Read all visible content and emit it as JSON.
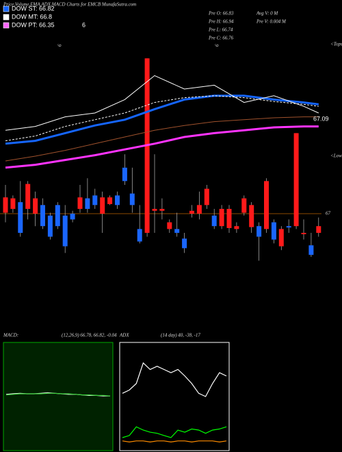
{
  "chart_data": [
    {
      "type": "candlestick",
      "title": "Price,Volume,EMA,ADX,MACD Charts for EMCB MunafaSutra.com",
      "legend": [
        {
          "label": "DOW ST: 66.82",
          "color": "#1565ff"
        },
        {
          "label": "DOW MT: 66.8",
          "color": "#ffffff"
        },
        {
          "label": "DOW PT: 66.35",
          "color": "#ff66ff"
        }
      ],
      "legend_note": "6",
      "stats": [
        "Pre O: 66.83",
        "Pre H: 66.94",
        "Pre L: 66.74",
        "Pre C: 66.76",
        "Avg V: 0 M",
        "Pre V: 0.004 M"
      ],
      "annotations": [
        "<Tops",
        "<Lows",
        "6",
        "6"
      ],
      "ylim": [
        66.88,
        67.18
      ],
      "up_color": "#1a66ff",
      "down_color": "#ff1a1a",
      "open": [
        67.017,
        67.016,
        66.98,
        67.031,
        67.016,
        66.987,
        66.976,
        66.987,
        66.966,
        66.994,
        67.017,
        67.005,
        67.009,
        67.017,
        67.017,
        67.009,
        67.034,
        67.009,
        66.971,
        67.162,
        67.005,
        67.005,
        66.991,
        66.98,
        66.964,
        67.003,
        67.009,
        67.026,
        66.987,
        67.005,
        67.005,
        66.987,
        67.016,
        67.009,
        66.976,
        67.034,
        66.973,
        66.984,
        66.986,
        67.084,
        66.98,
        66.957,
        66.987
      ],
      "high": [
        67.03,
        67.019,
        67.034,
        67.034,
        67.023,
        67.016,
        67.001,
        67.012,
        67.009,
        67.003,
        67.03,
        67.037,
        67.026,
        67.023,
        67.019,
        67.023,
        67.062,
        67.048,
        67.009,
        67.162,
        67.062,
        67.016,
        66.994,
        67.001,
        66.98,
        67.009,
        67.023,
        67.03,
        67.005,
        67.009,
        67.009,
        66.991,
        67.019,
        67.012,
        66.991,
        67.037,
        66.994,
        66.987,
        66.994,
        67.084,
        66.994,
        66.98,
        66.996
      ],
      "low": [
        66.991,
        67.001,
        66.976,
        66.994,
        66.987,
        66.984,
        66.973,
        66.984,
        66.959,
        66.991,
        67.001,
        67.001,
        67.005,
        66.98,
        67.009,
        67.005,
        67.03,
        67.001,
        66.969,
        66.976,
        66.98,
        66.994,
        66.98,
        66.976,
        66.959,
        66.996,
        66.994,
        67.005,
        66.984,
        66.984,
        66.98,
        66.98,
        66.998,
        66.98,
        66.951,
        66.98,
        66.969,
        66.962,
        66.98,
        66.984,
        66.973,
        66.955,
        66.976
      ],
      "close": [
        67.001,
        67.005,
        67.012,
        67.005,
        67.0,
        67.009,
        66.998,
        67.009,
        66.998,
        67.0,
        67.005,
        67.016,
        67.019,
        67.0,
        67.01,
        67.019,
        67.048,
        67.021,
        66.984,
        66.98,
        67.003,
        67.003,
        66.984,
        66.984,
        66.974,
        67.0,
        67.0,
        67.009,
        66.998,
        66.987,
        66.985,
        66.984,
        67.001,
        66.986,
        66.987,
        66.984,
        66.991,
        66.966,
        66.987,
        66.987,
        66.979,
        66.967,
        66.98
      ],
      "line_x": [
        0,
        4,
        8,
        12,
        16,
        20,
        24,
        28,
        32,
        36,
        40,
        42
      ],
      "series": [
        {
          "color": "#a0522d",
          "width": 1,
          "values": [
            67.055,
            67.06,
            67.066,
            67.073,
            67.08,
            67.087,
            67.092,
            67.096,
            67.098,
            67.1,
            67.101,
            67.101
          ]
        },
        {
          "color": "#ff33ff",
          "width": 3,
          "values": [
            67.048,
            67.051,
            67.056,
            67.061,
            67.067,
            67.073,
            67.08,
            67.084,
            67.087,
            67.09,
            67.091,
            67.091
          ]
        },
        {
          "color": "#1565ff",
          "width": 3,
          "values": [
            67.073,
            67.076,
            67.084,
            67.092,
            67.098,
            67.109,
            67.119,
            67.123,
            67.123,
            67.119,
            67.116,
            67.114
          ]
        },
        {
          "color": "#ffffff",
          "width": 1,
          "dash": true,
          "values": [
            67.076,
            67.081,
            67.091,
            67.098,
            67.105,
            67.116,
            67.121,
            67.123,
            67.121,
            67.117,
            67.114,
            67.112
          ]
        },
        {
          "color": "#ffffff",
          "width": 1,
          "values": [
            67.087,
            67.091,
            67.101,
            67.105,
            67.119,
            67.144,
            67.13,
            67.134,
            67.116,
            67.123,
            67.112,
            67.105
          ]
        }
      ],
      "level": 67,
      "level_color": "#8b4a00",
      "price_label": 67.09
    },
    {
      "type": "line",
      "title": "MACD:",
      "subtitle": "(12,26,9) 66.78, 66.82, -0.04",
      "background": "#002200",
      "border": "#00aa00",
      "ylim": [
        -1,
        1
      ],
      "series": [
        {
          "color": "#ffffff",
          "values": [
            0.04,
            0.05,
            0.06,
            0.05,
            0.05,
            0.06,
            0.07,
            0.06,
            0.05,
            0.04,
            0.04,
            0.03,
            0.02,
            0.02,
            0.01,
            0.01
          ]
        },
        {
          "color": "#33cc33",
          "values": [
            0.03,
            0.04,
            0.05,
            0.05,
            0.05,
            0.05,
            0.06,
            0.06,
            0.05,
            0.05,
            0.04,
            0.03,
            0.03,
            0.02,
            0.02,
            0.01
          ]
        }
      ]
    },
    {
      "type": "line",
      "title": "ADX",
      "subtitle": "(14 day) 40, -38, -17",
      "background": "#000000",
      "border": "#ffffff",
      "ylim": [
        0,
        100
      ],
      "series": [
        {
          "color": "#ffffff",
          "values": [
            53,
            56,
            62,
            81,
            75,
            78,
            75,
            72,
            75,
            69,
            62,
            53,
            50,
            62,
            72,
            69
          ]
        },
        {
          "color": "#00ff00",
          "values": [
            12,
            14,
            22,
            19,
            17,
            16,
            14,
            12,
            19,
            17,
            20,
            19,
            16,
            19,
            20,
            22
          ]
        },
        {
          "color": "#ff8c00",
          "values": [
            9,
            8,
            9,
            9,
            8,
            9,
            9,
            8,
            9,
            9,
            8,
            9,
            9,
            9,
            8,
            9
          ]
        }
      ]
    }
  ]
}
